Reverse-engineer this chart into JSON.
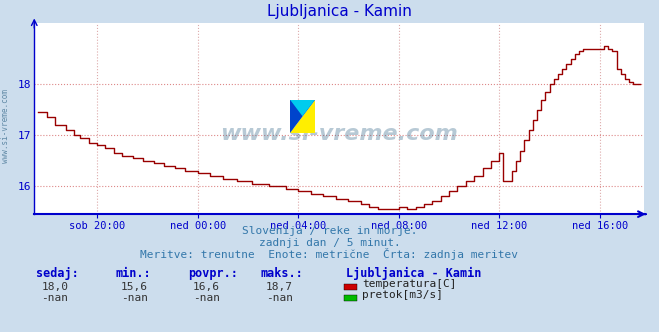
{
  "title": "Ljubljanica - Kamin",
  "title_color": "#0000cc",
  "bg_color": "#ccdded",
  "plot_bg_color": "#ffffff",
  "grid_color_y": "#dd8888",
  "grid_color_x": "#ddaaaa",
  "axis_color": "#0000cc",
  "line_color": "#990000",
  "yticks": [
    16,
    17,
    18
  ],
  "ymin": 15.45,
  "ymax": 19.2,
  "xtick_labels": [
    "sob 20:00",
    "ned 00:00",
    "ned 04:00",
    "ned 08:00",
    "ned 12:00",
    "ned 16:00"
  ],
  "subtitle1": "Slovenija / reke in morje.",
  "subtitle2": "zadnji dan / 5 minut.",
  "subtitle3": "Meritve: trenutne  Enote: metrične  Črta: zadnja meritev",
  "subtitle_color": "#3377aa",
  "table_headers": [
    "sedaj:",
    "min.:",
    "povpr.:",
    "maks.:"
  ],
  "table_values": [
    "18,0",
    "15,6",
    "16,6",
    "18,7"
  ],
  "table_label": "Ljubljanica - Kamin",
  "legend_items": [
    {
      "color": "#cc0000",
      "label": "temperatura[C]"
    },
    {
      "color": "#00bb00",
      "label": "pretok[m3/s]"
    }
  ],
  "table_color": "#0000cc",
  "nan_row": [
    "-nan",
    "-nan",
    "-nan",
    "-nan"
  ],
  "watermark_text": "www.si-vreme.com",
  "watermark_color": "#336688",
  "watermark_alpha": 0.35,
  "left_text": "www.si-vreme.com",
  "left_text_color": "#336688"
}
